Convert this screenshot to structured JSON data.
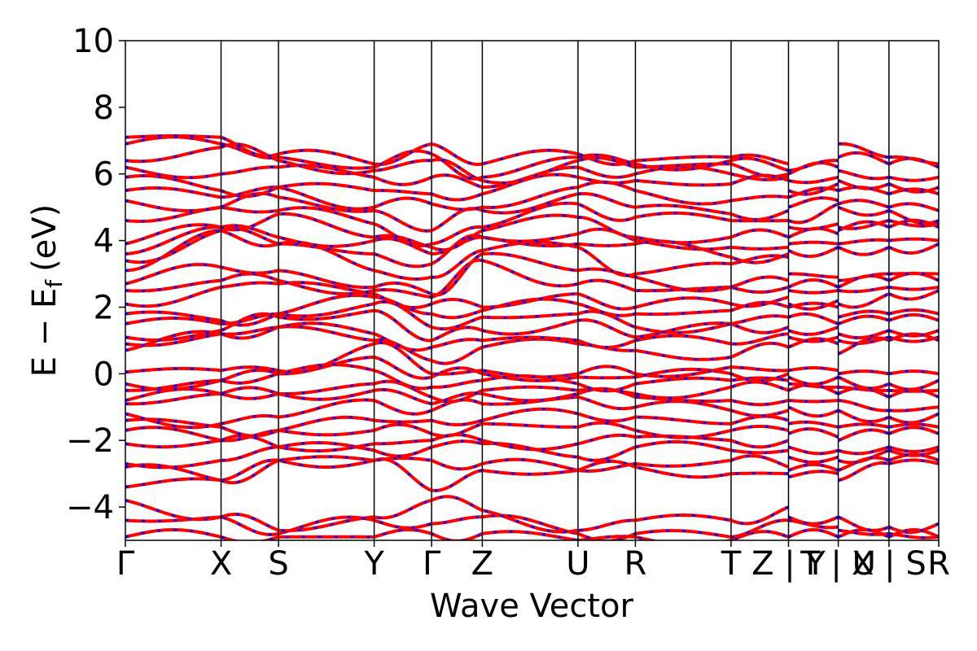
{
  "chart_data": {
    "type": "line",
    "title": "",
    "xlabel": "Wave Vector",
    "ylabel": "E − E",
    "ylabel_subscript": "f",
    "ylabel_unit": "(eV)",
    "ylim": [
      -5,
      10
    ],
    "y_ticks": [
      -4,
      -2,
      0,
      2,
      4,
      6,
      8,
      10
    ],
    "y_tick_labels": [
      "−4",
      "−2",
      "0",
      "2",
      "4",
      "6",
      "8",
      "10"
    ],
    "grid": false,
    "legend": "none",
    "kpath": [
      "Γ",
      "X",
      "S",
      "Y",
      "Γ",
      "Z",
      "U",
      "R",
      "T",
      "Z",
      "Y",
      "T",
      "U",
      "X",
      "S",
      "R"
    ],
    "kpoint_x": [
      0.0,
      1.0,
      1.6,
      2.6,
      3.2,
      3.73,
      4.73,
      5.33,
      6.33,
      6.93,
      6.93,
      7.45,
      7.45,
      7.98,
      7.98,
      8.5
    ],
    "x_tick_labels": [
      "Γ",
      "X",
      "S",
      "Y",
      "Γ",
      "Z",
      "U",
      "R",
      "T",
      "Z | Y",
      "T | U",
      "X | S",
      "R"
    ],
    "x_tick_positions": [
      0.0,
      1.0,
      1.6,
      2.6,
      3.2,
      3.73,
      4.73,
      5.33,
      6.33,
      6.93,
      7.45,
      7.98,
      8.5
    ],
    "x_range": [
      0,
      8.5
    ],
    "series": [
      {
        "style": "solid",
        "color": "#ff0000"
      },
      {
        "style": "dashed",
        "color": "#0000ff"
      }
    ],
    "bands_at_kpoints": [
      [
        -4.9,
        -4.4,
        -3.8,
        -3.4,
        -2.8,
        -2.7,
        -2.1,
        -1.7,
        -1.4,
        -1.2,
        -0.9,
        -0.8,
        -0.5,
        -0.3,
        0.05,
        0.7,
        0.9,
        1.1,
        1.5,
        1.8,
        2.1,
        2.5,
        2.7,
        3.1,
        3.4,
        3.6,
        3.9,
        4.6,
        5.2,
        5.5,
        5.9,
        6.2,
        6.4,
        6.9,
        7.1
      ],
      [
        -4.9,
        -4.3,
        -4.3,
        -3.2,
        -3.2,
        -2.6,
        -2.0,
        -2.0,
        -1.6,
        -1.5,
        -0.6,
        -0.6,
        -0.2,
        -0.2,
        0.1,
        1.2,
        1.2,
        1.3,
        1.5,
        1.6,
        2.6,
        2.8,
        3.2,
        4.3,
        4.3,
        4.4,
        4.4,
        5.0,
        5.0,
        5.3,
        5.5,
        6.0,
        6.8,
        6.9,
        7.1
      ],
      [
        -4.9,
        -4.8,
        -4.7,
        -2.6,
        -2.6,
        -2.2,
        -2.2,
        -1.7,
        -1.7,
        -1.3,
        -0.6,
        -0.6,
        0.0,
        0.0,
        0.1,
        1.4,
        1.4,
        1.7,
        1.8,
        1.8,
        2.7,
        2.8,
        3.1,
        3.9,
        3.9,
        4.1,
        4.8,
        4.9,
        5.3,
        5.6,
        5.6,
        6.2,
        6.4,
        6.5,
        6.6
      ],
      [
        -4.9,
        -4.4,
        -4.3,
        -2.6,
        -2.6,
        -2.3,
        -2.1,
        -1.7,
        -1.4,
        -0.8,
        -0.5,
        -0.3,
        0.1,
        0.5,
        0.9,
        1.0,
        1.2,
        1.9,
        2.1,
        2.3,
        2.4,
        2.5,
        2.6,
        3.1,
        3.6,
        4.0,
        4.1,
        4.5,
        4.9,
        5.0,
        5.5,
        5.9,
        6.1,
        6.2,
        6.3
      ],
      [
        -4.8,
        -4.5,
        -3.8,
        -3.5,
        -2.6,
        -2.2,
        -2.0,
        -1.8,
        -1.4,
        -1.1,
        -0.9,
        -0.7,
        -0.4,
        -0.1,
        0.0,
        0.4,
        0.8,
        1.0,
        1.4,
        1.8,
        2.1,
        2.3,
        2.4,
        2.9,
        3.3,
        3.6,
        3.8,
        3.9,
        4.3,
        5.1,
        5.4,
        5.9,
        6.4,
        6.6,
        6.9
      ],
      [
        -4.8,
        -4.3,
        -4.1,
        -2.9,
        -2.7,
        -2.1,
        -2.0,
        -1.5,
        -1.4,
        -0.9,
        -0.6,
        -0.5,
        -0.2,
        0.0,
        0.1,
        0.8,
        1.0,
        1.3,
        1.7,
        1.9,
        2.0,
        3.4,
        3.6,
        3.7,
        4.1,
        4.1,
        4.3,
        4.4,
        4.9,
        5.0,
        5.4,
        5.6,
        5.8,
        5.9,
        6.3
      ],
      [
        -5.0,
        -4.8,
        -4.7,
        -2.9,
        -2.9,
        -2.5,
        -2.1,
        -1.6,
        -1.2,
        -0.7,
        -0.6,
        -0.5,
        -0.3,
        -0.1,
        0.0,
        0.9,
        1.0,
        1.6,
        1.8,
        2.1,
        2.4,
        2.7,
        3.1,
        3.8,
        3.9,
        4.2,
        4.7,
        5.1,
        5.4,
        5.6,
        5.9,
        6.2,
        6.4,
        6.5,
        6.6
      ],
      [
        -4.9,
        -4.8,
        -4.4,
        -2.8,
        -2.7,
        -2.2,
        -1.9,
        -1.7,
        -1.3,
        -1.0,
        -0.7,
        -0.6,
        -0.3,
        -0.1,
        0.0,
        0.7,
        1.0,
        1.1,
        1.4,
        1.8,
        2.0,
        2.5,
        2.9,
        3.0,
        3.9,
        4.0,
        4.1,
        4.7,
        5.0,
        5.5,
        5.8,
        6.0,
        6.2,
        6.3,
        6.4
      ],
      [
        -5.0,
        -4.9,
        -4.4,
        -3.0,
        -2.6,
        -2.3,
        -2.0,
        -1.7,
        -1.5,
        -1.1,
        -0.8,
        -0.4,
        -0.2,
        0.0,
        0.2,
        0.5,
        0.9,
        1.5,
        1.5,
        1.9,
        2.1,
        2.6,
        2.6,
        3.3,
        3.5,
        3.8,
        4.1,
        4.6,
        4.8,
        5.2,
        5.7,
        6.0,
        6.3,
        6.4,
        6.5
      ],
      [
        -4.9,
        -4.4,
        -4.0,
        -3.0,
        -2.8,
        -2.3,
        -2.0,
        -1.7,
        -1.4,
        -1.1,
        -0.8,
        -0.5,
        -0.2,
        0.0,
        0.1,
        0.8,
        1.2,
        1.4,
        1.7,
        2.0,
        2.3,
        2.6,
        2.8,
        3.5,
        3.6,
        3.8,
        4.1,
        4.6,
        4.9,
        5.3,
        5.8,
        5.9,
        6.0,
        6.1,
        6.3
      ],
      [
        -4.9,
        -4.4,
        -4.3,
        -3.1,
        -2.9,
        -2.5,
        -2.2,
        -1.8,
        -1.5,
        -1.0,
        -0.8,
        -0.5,
        -0.3,
        -0.1,
        0.1,
        0.8,
        1.1,
        1.3,
        1.7,
        2.0,
        2.1,
        2.5,
        2.6,
        3.0,
        3.7,
        3.9,
        4.1,
        4.4,
        4.6,
        5.0,
        5.3,
        5.5,
        5.8,
        6.0,
        6.1
      ],
      [
        -4.9,
        -4.6,
        -4.3,
        -3.0,
        -2.9,
        -2.5,
        -2.3,
        -1.9,
        -1.6,
        -1.1,
        -0.8,
        -0.6,
        -0.4,
        -0.1,
        0.1,
        0.9,
        1.1,
        1.4,
        1.5,
        2.0,
        2.2,
        2.5,
        2.6,
        2.9,
        3.8,
        3.9,
        4.2,
        4.5,
        5.1,
        5.2,
        5.5,
        5.7,
        5.9,
        6.2,
        6.4
      ],
      [
        -4.9,
        -4.7,
        -4.3,
        -3.2,
        -2.9,
        -2.6,
        -2.3,
        -2.0,
        -1.6,
        -1.1,
        -0.8,
        -0.6,
        -0.4,
        -0.1,
        0.0,
        0.6,
        1.0,
        1.2,
        1.5,
        1.7,
        2.1,
        2.5,
        2.6,
        2.8,
        3.8,
        3.9,
        4.3,
        4.4,
        5.0,
        5.1,
        5.5,
        5.8,
        6.1,
        6.5,
        6.9
      ],
      [
        -4.9,
        -4.8,
        -4.6,
        -2.7,
        -2.6,
        -2.3,
        -2.2,
        -1.8,
        -1.6,
        -1.3,
        -1.1,
        -0.7,
        -0.5,
        -0.3,
        0.0,
        1.0,
        1.1,
        1.3,
        1.6,
        1.8,
        2.4,
        2.6,
        2.8,
        3.0,
        3.8,
        4.0,
        4.4,
        4.6,
        4.9,
        5.0,
        5.4,
        5.7,
        5.9,
        6.3,
        6.5
      ],
      [
        -4.9,
        -4.8,
        -4.6,
        -2.7,
        -2.6,
        -2.3,
        -2.2,
        -1.8,
        -1.6,
        -1.3,
        -1.1,
        -0.7,
        -0.5,
        -0.3,
        0.0,
        1.0,
        1.1,
        1.3,
        1.6,
        1.8,
        2.4,
        2.6,
        2.8,
        3.0,
        3.8,
        4.0,
        4.4,
        4.6,
        4.9,
        5.0,
        5.4,
        5.7,
        5.9,
        6.3,
        6.5
      ],
      [
        -4.9,
        -4.9,
        -4.5,
        -2.7,
        -2.6,
        -2.3,
        -2.2,
        -1.8,
        -1.6,
        -1.2,
        -1.0,
        -0.7,
        -0.5,
        -0.2,
        0.0,
        1.0,
        1.1,
        1.3,
        1.6,
        1.8,
        2.5,
        2.6,
        2.8,
        3.0,
        3.9,
        4.0,
        4.4,
        4.5,
        4.6,
        4.9,
        5.4,
        5.6,
        5.9,
        6.2,
        6.3
      ]
    ]
  }
}
